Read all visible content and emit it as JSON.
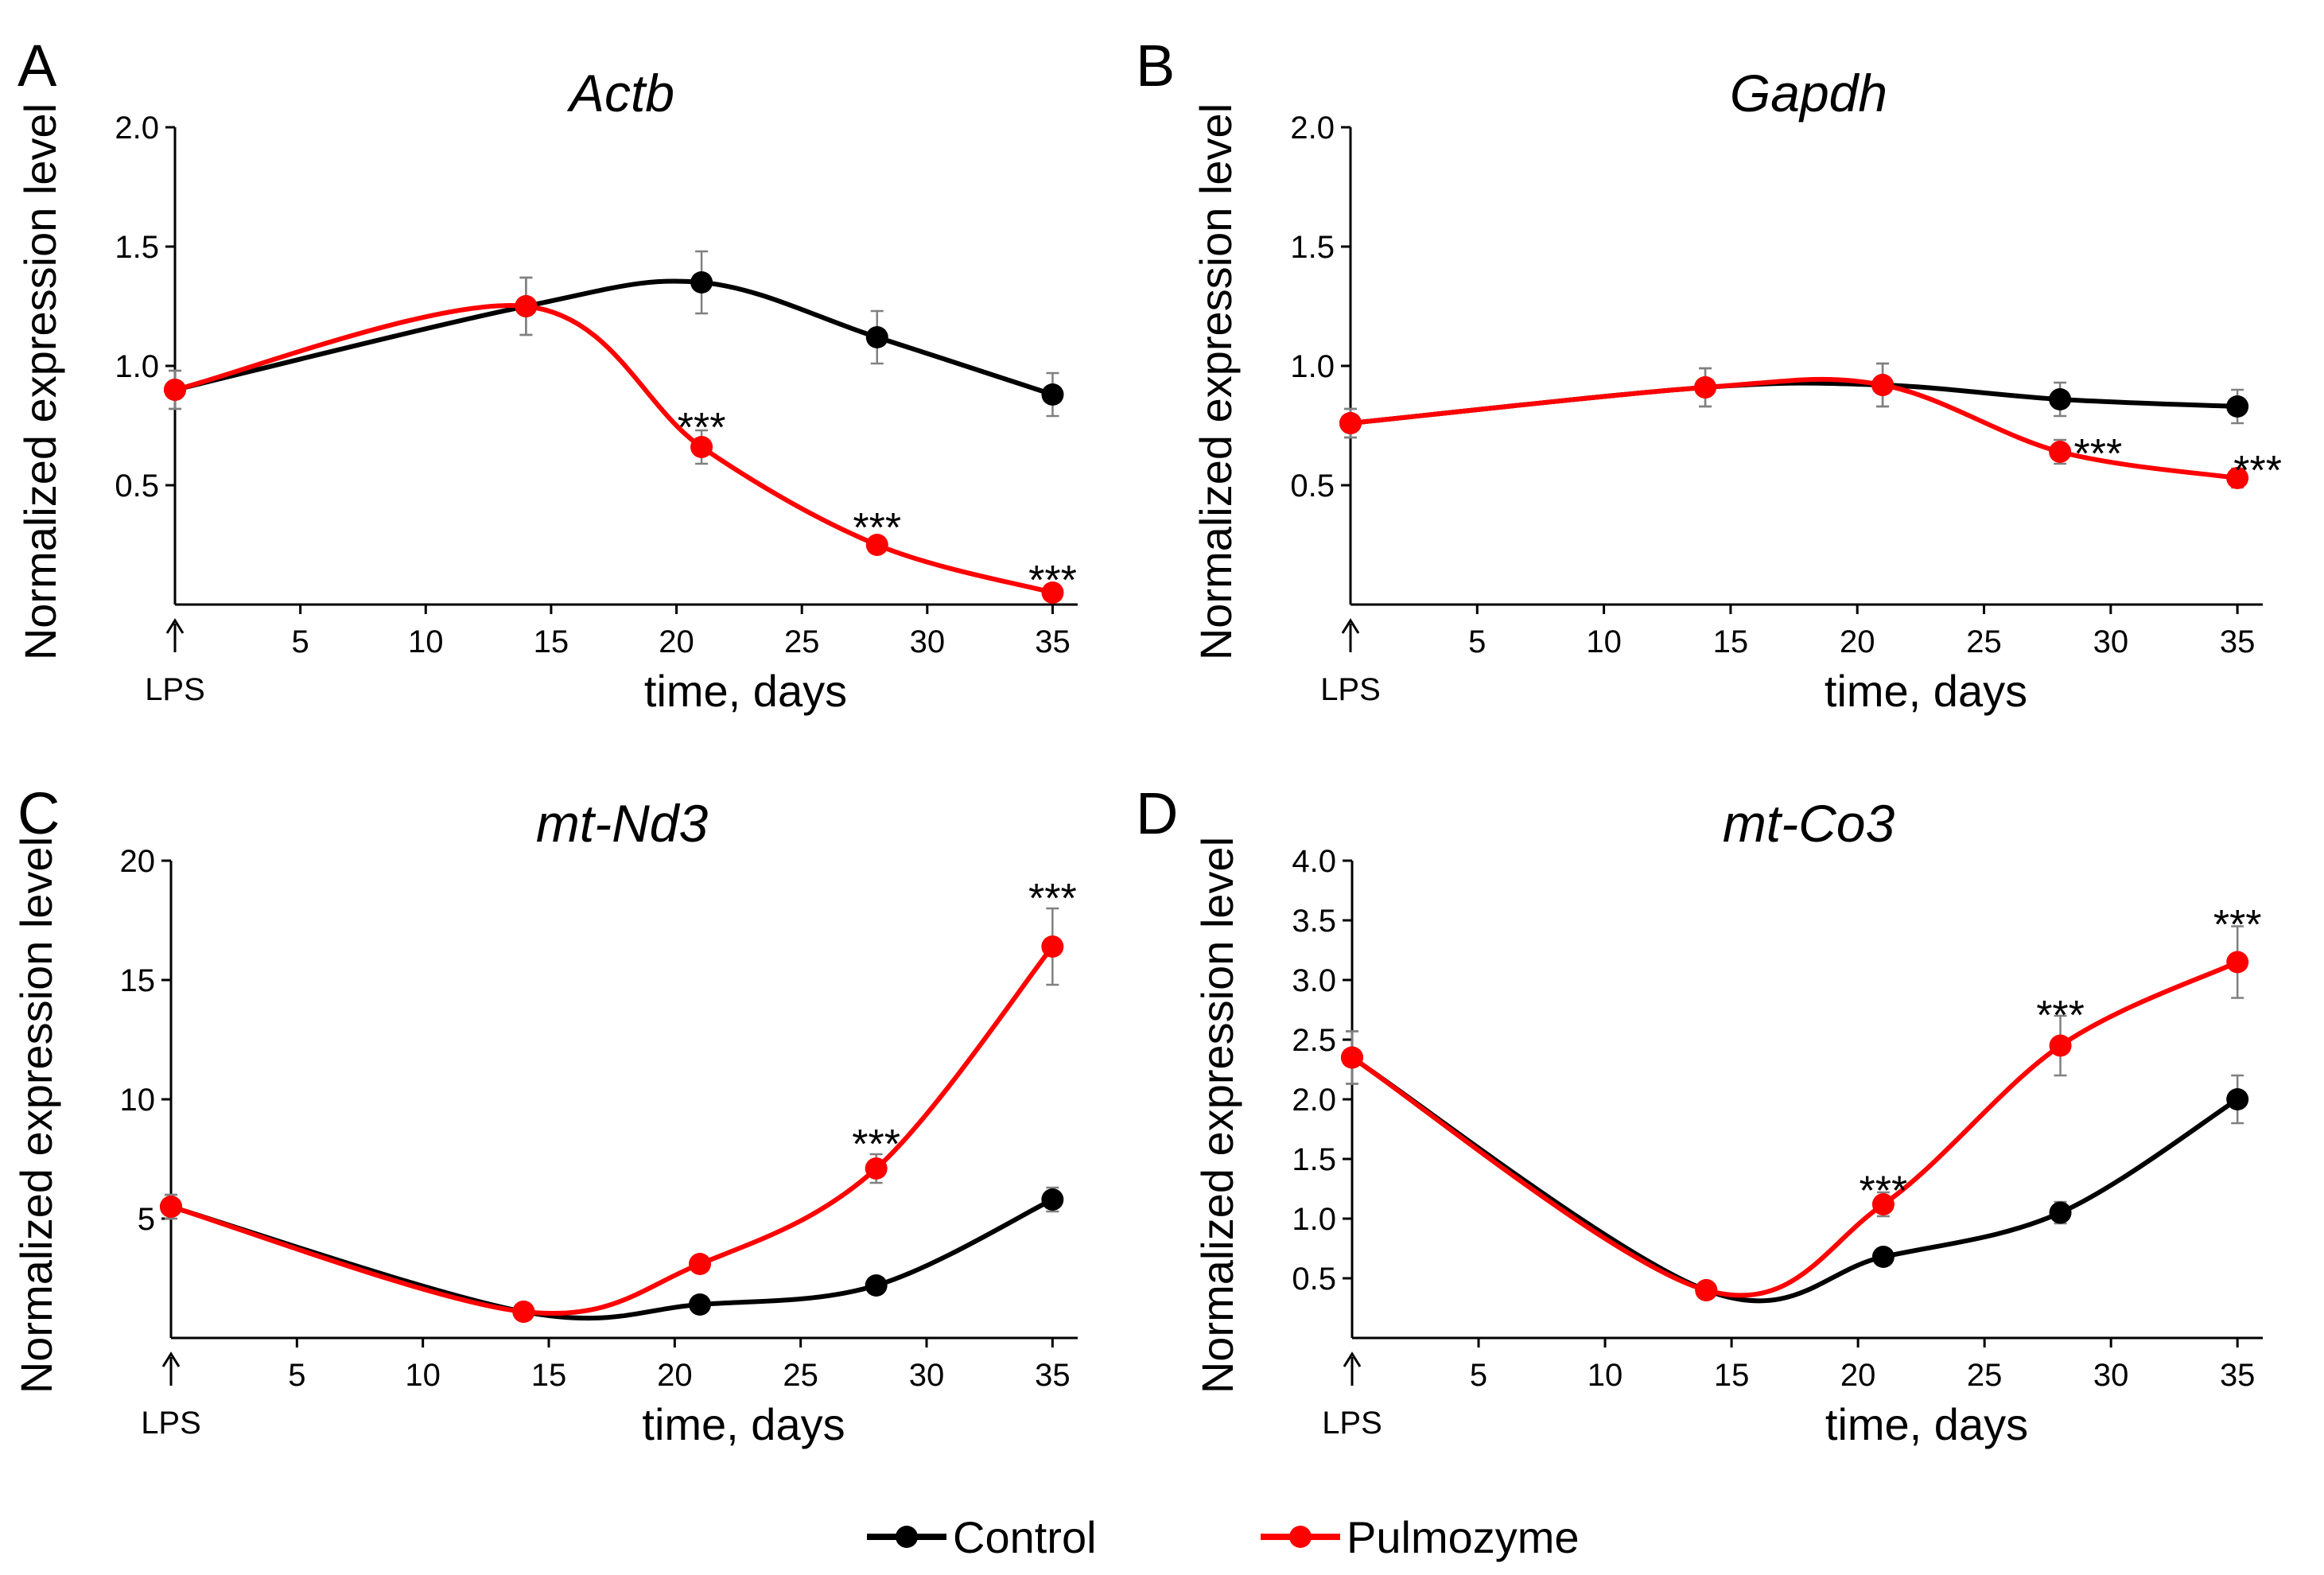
{
  "legend": {
    "control_label": "Control",
    "pulmozyme_label": "Pulmozyme"
  },
  "colors": {
    "control": "#000000",
    "pulmozyme": "#ff0000",
    "axis": "#000000",
    "errorbar": "#808080"
  },
  "chart_data": [
    {
      "type": "line",
      "panel": "A",
      "title": "Actb",
      "xlabel": "time, days",
      "ylabel": "Normalized expression level",
      "xlim": [
        0,
        36
      ],
      "ylim": [
        0,
        2.0
      ],
      "xticks": [
        5,
        10,
        15,
        20,
        25,
        30,
        35
      ],
      "yticks": [
        0.5,
        1.0,
        1.5,
        2.0
      ],
      "ytick_labels": [
        "0.5",
        "1.0",
        "1.5",
        "2.0"
      ],
      "x_origin_label": "LPS",
      "x": [
        0,
        14,
        21,
        28,
        35
      ],
      "series": [
        {
          "name": "Control",
          "values": [
            0.9,
            1.25,
            1.35,
            1.12,
            0.88
          ],
          "errors": [
            0.08,
            0.12,
            0.13,
            0.11,
            0.09
          ]
        },
        {
          "name": "Pulmozyme",
          "values": [
            0.9,
            1.25,
            0.66,
            0.25,
            0.05
          ],
          "errors": [
            0.08,
            0.12,
            0.07,
            0.03,
            0.02
          ]
        }
      ],
      "annotations": [
        {
          "x": 21,
          "y": 0.75,
          "text": "***"
        },
        {
          "x": 28,
          "y": 0.33,
          "text": "***"
        },
        {
          "x": 35,
          "y": 0.11,
          "text": "***"
        }
      ]
    },
    {
      "type": "line",
      "panel": "B",
      "title": "Gapdh",
      "xlabel": "time, days",
      "ylabel": "Normalized expression level",
      "xlim": [
        0,
        36
      ],
      "ylim": [
        0,
        2.0
      ],
      "xticks": [
        5,
        10,
        15,
        20,
        25,
        30,
        35
      ],
      "yticks": [
        0.5,
        1.0,
        1.5,
        2.0
      ],
      "ytick_labels": [
        "0.5",
        "1.0",
        "1.5",
        "2.0"
      ],
      "x_origin_label": "LPS",
      "x": [
        0,
        14,
        21,
        28,
        35
      ],
      "series": [
        {
          "name": "Control",
          "values": [
            0.76,
            0.91,
            0.92,
            0.86,
            0.83
          ],
          "errors": [
            0.06,
            0.08,
            0.09,
            0.07,
            0.07
          ]
        },
        {
          "name": "Pulmozyme",
          "values": [
            0.76,
            0.91,
            0.92,
            0.64,
            0.53
          ],
          "errors": [
            0.06,
            0.08,
            0.09,
            0.05,
            0.04
          ]
        }
      ],
      "annotations": [
        {
          "x": 29.5,
          "y": 0.64,
          "text": "***"
        },
        {
          "x": 35.8,
          "y": 0.57,
          "text": "***"
        }
      ]
    },
    {
      "type": "line",
      "panel": "C",
      "title": "mt-Nd3",
      "xlabel": "time, days",
      "ylabel": "Normalized expression level",
      "xlim": [
        0,
        36
      ],
      "ylim": [
        0,
        20
      ],
      "xticks": [
        5,
        10,
        15,
        20,
        25,
        30,
        35
      ],
      "yticks": [
        5,
        10,
        15,
        20
      ],
      "ytick_labels": [
        "5",
        "10",
        "15",
        "20"
      ],
      "x_origin_label": "LPS",
      "x": [
        0,
        14,
        21,
        28,
        35
      ],
      "series": [
        {
          "name": "Control",
          "values": [
            5.5,
            1.1,
            1.4,
            2.2,
            5.8
          ],
          "errors": [
            0.5,
            0.2,
            0.2,
            0.3,
            0.5
          ]
        },
        {
          "name": "Pulmozyme",
          "values": [
            5.5,
            1.1,
            3.1,
            7.1,
            16.4
          ],
          "errors": [
            0.5,
            0.2,
            0.3,
            0.6,
            1.6
          ]
        }
      ],
      "annotations": [
        {
          "x": 28,
          "y": 8.2,
          "text": "***"
        },
        {
          "x": 35,
          "y": 18.5,
          "text": "***"
        }
      ]
    },
    {
      "type": "line",
      "panel": "D",
      "title": "mt-Co3",
      "xlabel": "time, days",
      "ylabel": "Normalized expression level",
      "xlim": [
        0,
        36
      ],
      "ylim": [
        0,
        4.0
      ],
      "xticks": [
        5,
        10,
        15,
        20,
        25,
        30,
        35
      ],
      "yticks": [
        0.5,
        1.0,
        1.5,
        2.0,
        2.5,
        3.0,
        3.5,
        4.0
      ],
      "ytick_labels": [
        "0.5",
        "1.0",
        "1.5",
        "2.0",
        "2.5",
        "3.0",
        "3.5",
        "4.0"
      ],
      "x_origin_label": "LPS",
      "x": [
        0,
        14,
        21,
        28,
        35
      ],
      "series": [
        {
          "name": "Control",
          "values": [
            2.35,
            0.4,
            0.68,
            1.05,
            2.0
          ],
          "errors": [
            0.22,
            0.04,
            0.05,
            0.09,
            0.2
          ]
        },
        {
          "name": "Pulmozyme",
          "values": [
            2.35,
            0.4,
            1.12,
            2.45,
            3.15
          ],
          "errors": [
            0.22,
            0.04,
            0.1,
            0.25,
            0.3
          ]
        }
      ],
      "annotations": [
        {
          "x": 21,
          "y": 1.25,
          "text": "***"
        },
        {
          "x": 28,
          "y": 2.72,
          "text": "***"
        },
        {
          "x": 35,
          "y": 3.48,
          "text": "***"
        }
      ]
    }
  ]
}
